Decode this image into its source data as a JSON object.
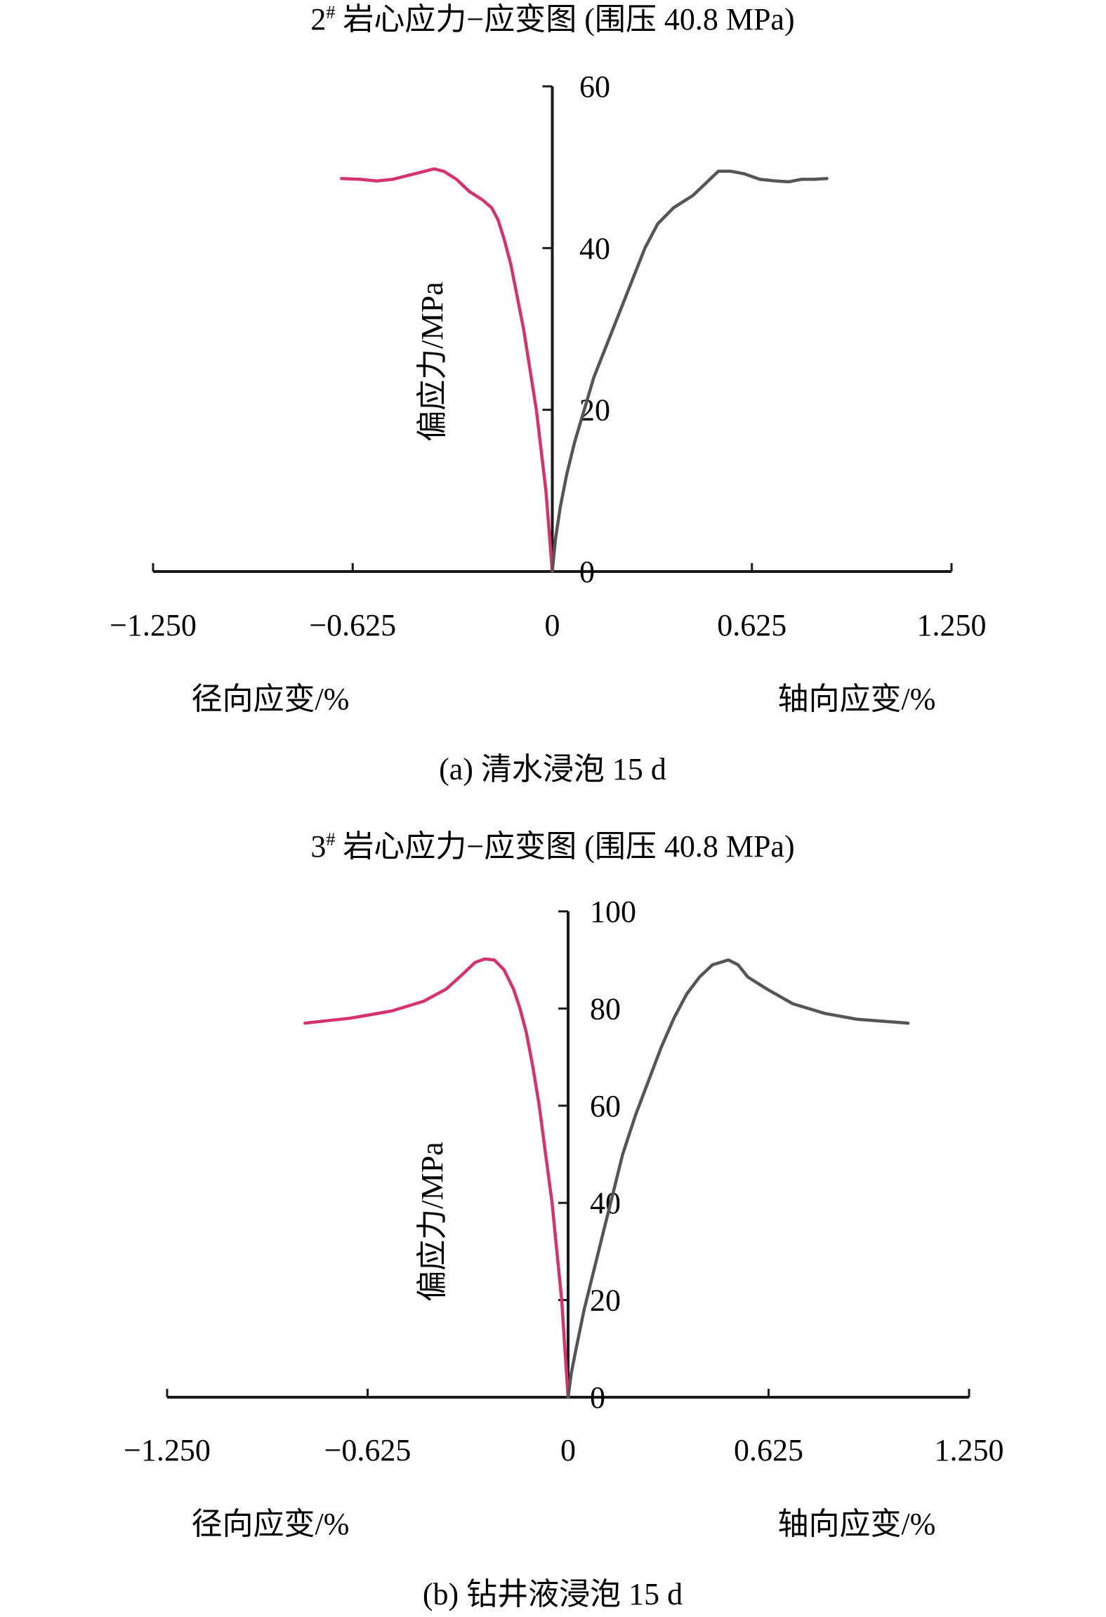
{
  "chart_data": [
    {
      "type": "line",
      "title": "2# 岩心应力−应变图 (围压 40.8 MPa)",
      "title_main": "2",
      "title_sup": "#",
      "title_rest": " 岩心应力−应变图 (围压 40.8 MPa)",
      "caption": "(a) 清水浸泡 15 d",
      "xlabel_left": "径向应变/%",
      "xlabel_right": "轴向应变/%",
      "ylabel": "偏应力/MPa",
      "xlim": [
        -1.25,
        1.25
      ],
      "ylim": [
        0,
        60
      ],
      "x_ticks": [
        -1.25,
        -0.625,
        0,
        0.625,
        1.25
      ],
      "x_tick_labels": [
        "−1.250",
        "−0.625",
        "0",
        "0.625",
        "1.250"
      ],
      "y_ticks": [
        0,
        20,
        40,
        60
      ],
      "y_tick_labels": [
        "0",
        "20",
        "40",
        "60"
      ],
      "grid": false,
      "series": [
        {
          "color": "#d6336c",
          "x": [
            0,
            -0.01,
            -0.02,
            -0.035,
            -0.05,
            -0.07,
            -0.09,
            -0.11,
            -0.13,
            -0.15,
            -0.17,
            -0.19,
            -0.22,
            -0.26,
            -0.3,
            -0.34,
            -0.37,
            -0.4,
            -0.45,
            -0.5,
            -0.55,
            -0.6,
            -0.66
          ],
          "y": [
            0,
            5,
            10,
            15,
            20,
            25,
            30,
            34,
            38,
            41,
            43.5,
            45,
            46,
            47,
            48.5,
            49.5,
            49.8,
            49.5,
            49,
            48.5,
            48.3,
            48.5,
            48.6
          ]
        },
        {
          "color": "#555555",
          "x": [
            0,
            0.01,
            0.025,
            0.045,
            0.07,
            0.1,
            0.13,
            0.17,
            0.21,
            0.25,
            0.29,
            0.33,
            0.38,
            0.44,
            0.48,
            0.52,
            0.56,
            0.6,
            0.65,
            0.7,
            0.74,
            0.78,
            0.82,
            0.86
          ],
          "y": [
            0,
            4,
            8,
            12,
            16,
            20,
            24,
            28,
            32,
            36,
            40,
            43,
            45,
            46.5,
            48,
            49.5,
            49.5,
            49.2,
            48.5,
            48.3,
            48.2,
            48.5,
            48.5,
            48.6
          ]
        }
      ]
    },
    {
      "type": "line",
      "title": "3# 岩心应力−应变图 (围压 40.8 MPa)",
      "title_main": "3",
      "title_sup": "#",
      "title_rest": " 岩心应力−应变图 (围压 40.8 MPa)",
      "caption": "(b) 钻井液浸泡 15 d",
      "xlabel_left": "径向应变/%",
      "xlabel_right": "轴向应变/%",
      "ylabel": "偏应力/MPa",
      "xlim": [
        -1.25,
        1.25
      ],
      "ylim": [
        0,
        100
      ],
      "x_ticks": [
        -1.25,
        -0.625,
        0,
        0.625,
        1.25
      ],
      "x_tick_labels": [
        "−1.250",
        "−0.625",
        "0",
        "0.625",
        "1.250"
      ],
      "y_ticks": [
        0,
        20,
        40,
        60,
        80,
        100
      ],
      "y_tick_labels": [
        "0",
        "20",
        "40",
        "60",
        "80",
        "100"
      ],
      "grid": false,
      "series": [
        {
          "color": "#d6336c",
          "x": [
            0,
            -0.01,
            -0.02,
            -0.035,
            -0.05,
            -0.07,
            -0.09,
            -0.11,
            -0.13,
            -0.15,
            -0.17,
            -0.2,
            -0.23,
            -0.26,
            -0.29,
            -0.33,
            -0.38,
            -0.45,
            -0.55,
            -0.68,
            -0.82
          ],
          "y": [
            0,
            10,
            20,
            30,
            40,
            50,
            60,
            68,
            75,
            80,
            84,
            88,
            90,
            90.2,
            89.5,
            87,
            84,
            81.5,
            79.5,
            78,
            77
          ]
        },
        {
          "color": "#555555",
          "x": [
            0,
            0.01,
            0.025,
            0.05,
            0.08,
            0.11,
            0.14,
            0.17,
            0.21,
            0.25,
            0.29,
            0.33,
            0.37,
            0.41,
            0.45,
            0.5,
            0.53,
            0.56,
            0.62,
            0.7,
            0.8,
            0.9,
            1.0,
            1.06
          ],
          "y": [
            0,
            5,
            10,
            18,
            26,
            34,
            42,
            50,
            58,
            65,
            72,
            78,
            83,
            86.5,
            89,
            90,
            89,
            86.5,
            84,
            81,
            79,
            77.8,
            77.3,
            77
          ]
        }
      ]
    }
  ]
}
